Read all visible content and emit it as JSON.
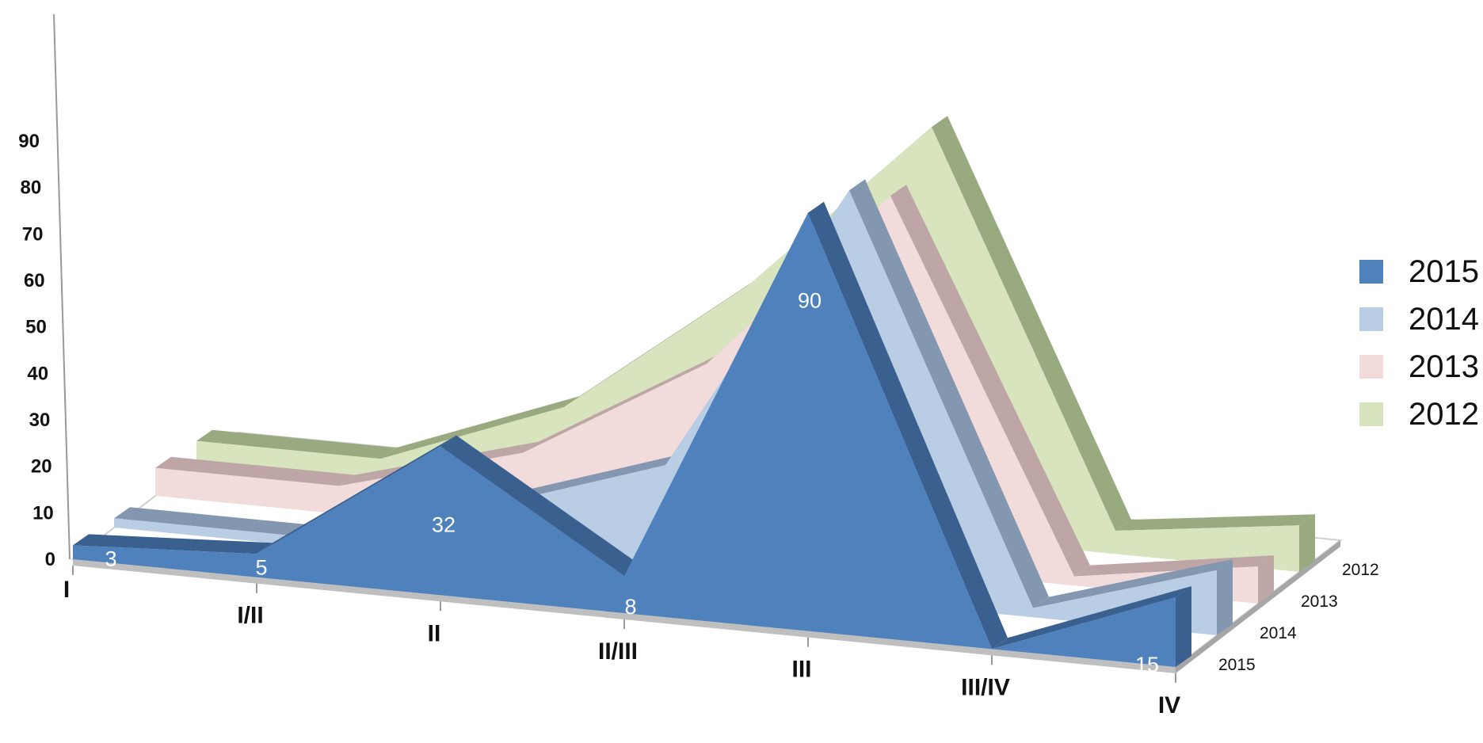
{
  "chart_data": {
    "type": "area",
    "three_d": true,
    "categories": [
      "I",
      "I/II",
      "II",
      "II/III",
      "III",
      "III/IV",
      "IV"
    ],
    "ylim": [
      0,
      90
    ],
    "yticks": [
      "0",
      "10",
      "20",
      "30",
      "40",
      "50",
      "60",
      "70",
      "80",
      "90"
    ],
    "depth_labels": [
      "2012",
      "2013",
      "2014",
      "2015"
    ],
    "legend_position": "right",
    "series": [
      {
        "name": "2012",
        "color": "#d7e4bd",
        "side_color": "#9aaa80",
        "values": [
          5,
          5,
          20,
          50,
          88,
          5,
          10
        ]
      },
      {
        "name": "2013",
        "color": "#f2dcdb",
        "side_color": "#bfa6a6",
        "values": [
          6,
          6,
          17,
          40,
          80,
          2,
          8
        ]
      },
      {
        "name": "2014",
        "color": "#b9cde5",
        "side_color": "#8497b0",
        "values": [
          2,
          2,
          12,
          25,
          88,
          2,
          14
        ]
      },
      {
        "name": "2015",
        "color": "#4f81bd",
        "side_color": "#3a6090",
        "values": [
          3,
          5,
          32,
          8,
          90,
          0,
          15
        ],
        "data_labels": [
          "3",
          "5",
          "32",
          "8",
          "90",
          "",
          "15"
        ]
      }
    ],
    "legend": [
      "2015",
      "2014",
      "2013",
      "2012"
    ]
  }
}
